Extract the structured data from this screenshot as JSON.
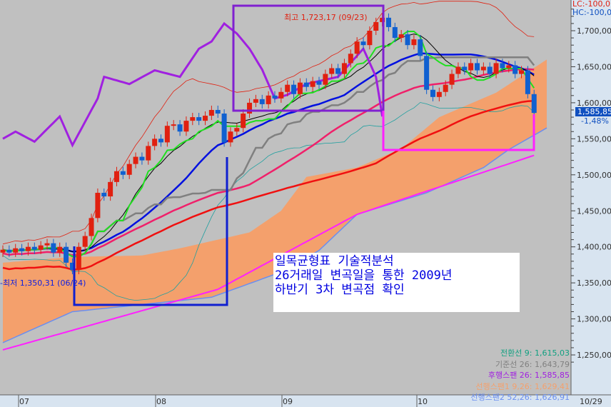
{
  "chart_data": {
    "type": "candlestick",
    "ylim": [
      1240,
      1750
    ],
    "y_ticks": [
      "1,250,00",
      "1,300,00",
      "1,350,00",
      "1,400,00",
      "1,450,00",
      "1,500,00",
      "1,550,00",
      "1,600,00",
      "1,650,00",
      "1,700,00"
    ],
    "x_month_labels": [
      "07",
      "08",
      "09",
      "10"
    ],
    "x_end_label": "10/29",
    "grid": false,
    "closes": [
      1396,
      1392,
      1398,
      1394,
      1400,
      1396,
      1402,
      1405,
      1392,
      1400,
      1378,
      1368,
      1400,
      1415,
      1440,
      1475,
      1470,
      1490,
      1505,
      1500,
      1515,
      1525,
      1520,
      1540,
      1550,
      1545,
      1568,
      1570,
      1560,
      1575,
      1580,
      1575,
      1582,
      1590,
      1585,
      1545,
      1560,
      1565,
      1585,
      1600,
      1605,
      1598,
      1610,
      1606,
      1615,
      1625,
      1612,
      1628,
      1622,
      1630,
      1625,
      1640,
      1648,
      1640,
      1655,
      1668,
      1685,
      1680,
      1700,
      1712,
      1718,
      1705,
      1690,
      1695,
      1680,
      1688,
      1665,
      1618,
      1608,
      1615,
      1625,
      1640,
      1650,
      1645,
      1655,
      1645,
      1650,
      1640,
      1655,
      1648,
      1652,
      1640,
      1645,
      1612,
      1585.85
    ],
    "leading_span1": [
      [
        0,
        1378
      ],
      [
        11,
        1386
      ],
      [
        22,
        1388
      ],
      [
        28,
        1398
      ],
      [
        39,
        1420
      ],
      [
        44,
        1450
      ],
      [
        48,
        1497
      ],
      [
        56,
        1510
      ],
      [
        63,
        1536
      ],
      [
        69,
        1580
      ],
      [
        78,
        1614
      ],
      [
        86,
        1660
      ]
    ],
    "leading_span2": [
      [
        0,
        1267
      ],
      [
        11,
        1310
      ],
      [
        22,
        1320
      ],
      [
        33,
        1330
      ],
      [
        44,
        1365
      ],
      [
        50,
        1395
      ],
      [
        56,
        1445
      ],
      [
        67,
        1475
      ],
      [
        76,
        1510
      ],
      [
        80,
        1535
      ],
      [
        83,
        1550
      ],
      [
        86,
        1565
      ]
    ],
    "lagging_span": [
      [
        0,
        1550
      ],
      [
        2,
        1560
      ],
      [
        5,
        1546
      ],
      [
        9,
        1581
      ],
      [
        11,
        1541
      ],
      [
        15,
        1606
      ],
      [
        16,
        1636
      ],
      [
        20,
        1626
      ],
      [
        24,
        1645
      ],
      [
        28,
        1636
      ],
      [
        31,
        1675
      ],
      [
        33,
        1685
      ],
      [
        35,
        1710
      ],
      [
        37,
        1696
      ],
      [
        39,
        1675
      ],
      [
        41,
        1646
      ],
      [
        43,
        1606
      ],
      [
        45,
        1611
      ],
      [
        48,
        1626
      ],
      [
        53,
        1636
      ],
      [
        57,
        1675
      ],
      [
        59,
        1636
      ],
      [
        60,
        1581
      ]
    ],
    "long_ma": [
      [
        0,
        1257
      ],
      [
        34,
        1341
      ],
      [
        56,
        1445
      ],
      [
        84,
        1527
      ]
    ],
    "colors": {
      "up": "#e02010",
      "down": "#1060d0",
      "cloud": "#f4a06c",
      "span2": "#6a8ef0",
      "lagging": "#a020e0",
      "long_ma": "#ff20ff",
      "conversion": "#20e020",
      "base": "#808080"
    }
  },
  "annotations": {
    "high_label": "최고 1,723,17 (09/23)",
    "low_label": "-최저 1,350,31 (06/24)",
    "note_lines": [
      "일목균형표 기술적분석",
      "26거래일 변곡일을 통한 2009년",
      "하반기 3차 변곡점 확인"
    ]
  },
  "top_right": {
    "lc": "LC:-100,0",
    "hc": "HC:-100,0"
  },
  "last_price": "1,585,85",
  "change_pct": "-1,48%",
  "legend": [
    {
      "text": "전환선 9: 1,615,03",
      "color": "#10a080"
    },
    {
      "text": "기준선 26: 1,643,79",
      "color": "#808080"
    },
    {
      "text": "후행스팬 26: 1,585,85",
      "color": "#a020e0"
    },
    {
      "text": "선행스팬1 9,26: 1,629,41",
      "color": "#f4a06c"
    },
    {
      "text": "선행스팬2 52,26: 1,626,91",
      "color": "#6a8ef0"
    }
  ]
}
